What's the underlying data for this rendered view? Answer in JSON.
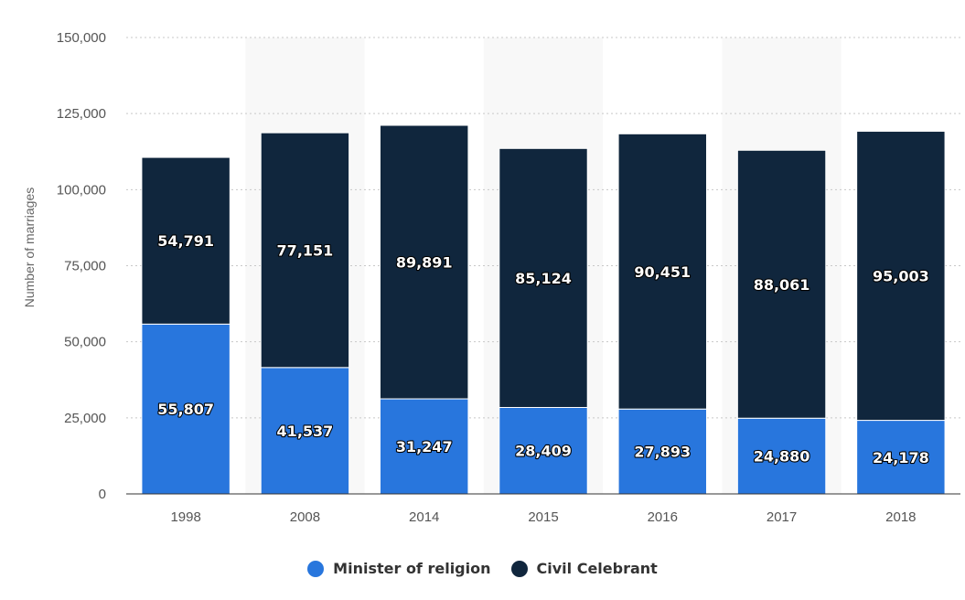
{
  "chart_data": {
    "type": "bar",
    "stacked": true,
    "title": "",
    "xlabel": "",
    "ylabel": "Number of marriages",
    "ylim": [
      0,
      150000
    ],
    "yticks": [
      0,
      25000,
      50000,
      75000,
      100000,
      125000,
      150000
    ],
    "ytick_labels": [
      "0",
      "25,000",
      "50,000",
      "75,000",
      "100,000",
      "125,000",
      "150,000"
    ],
    "categories": [
      "1998",
      "2008",
      "2014",
      "2015",
      "2016",
      "2017",
      "2018"
    ],
    "series": [
      {
        "name": "Minister of religion",
        "color": "#2876dd",
        "values": [
          55807,
          41537,
          31247,
          28409,
          27893,
          24880,
          24178
        ],
        "labels": [
          "55,807",
          "41,537",
          "31,247",
          "28,409",
          "27,893",
          "24,880",
          "24,178"
        ]
      },
      {
        "name": "Civil Celebrant",
        "color": "#10263d",
        "values": [
          54791,
          77151,
          89891,
          85124,
          90451,
          88061,
          95003
        ],
        "labels": [
          "54,791",
          "77,151",
          "89,891",
          "85,124",
          "90,451",
          "88,061",
          "95,003"
        ]
      }
    ],
    "grid": true,
    "legend_position": "bottom-center"
  }
}
